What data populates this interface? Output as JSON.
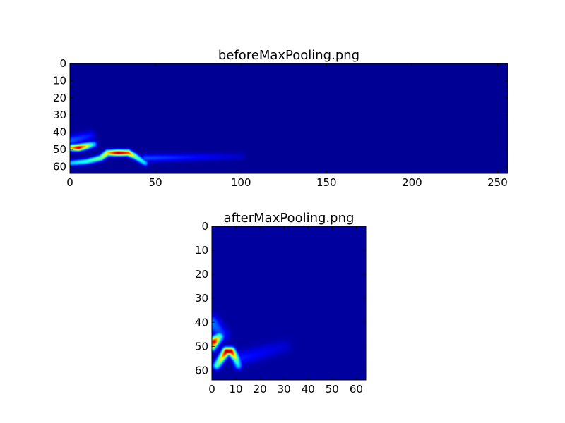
{
  "chart_data": [
    {
      "type": "heatmap",
      "title": "beforeMaxPooling.png",
      "colormap": "jet",
      "shape": [
        64,
        256
      ],
      "xlim": [
        0,
        256
      ],
      "ylim": [
        64,
        0
      ],
      "x_ticks": [
        0,
        50,
        100,
        150,
        200,
        250
      ],
      "y_ticks": [
        0,
        10,
        20,
        30,
        40,
        50,
        60
      ],
      "grid": false,
      "background_value": 0.02,
      "features": [
        {
          "points": [
            [
              0,
              49,
              0.6
            ],
            [
              5,
              49,
              0.92
            ],
            [
              10,
              48,
              0.6
            ],
            [
              14,
              47,
              0.3
            ]
          ],
          "spread": 1.3
        },
        {
          "points": [
            [
              0,
              58,
              0.3
            ],
            [
              10,
              57,
              0.4
            ],
            [
              18,
              55,
              0.5
            ],
            [
              22,
              52,
              0.65
            ],
            [
              28,
              52,
              0.95
            ],
            [
              34,
              52,
              0.8
            ],
            [
              38,
              54,
              0.5
            ],
            [
              44,
              58,
              0.3
            ]
          ],
          "spread": 1.2
        },
        {
          "points": [
            [
              0,
              45,
              0.2
            ],
            [
              12,
              42,
              0.12
            ]
          ],
          "spread": 2
        },
        {
          "points": [
            [
              44,
              55,
              0.18
            ],
            [
              100,
              54,
              0.05
            ]
          ],
          "spread": 1.5
        }
      ]
    },
    {
      "type": "heatmap",
      "title": "afterMaxPooling.png",
      "colormap": "jet",
      "shape": [
        64,
        64
      ],
      "xlim": [
        0,
        64
      ],
      "ylim": [
        64,
        0
      ],
      "x_ticks": [
        0,
        10,
        20,
        30,
        40,
        50,
        60
      ],
      "y_ticks": [
        0,
        10,
        20,
        30,
        40,
        50,
        60
      ],
      "grid": false,
      "background_value": 0.03,
      "features": [
        {
          "points": [
            [
              0,
              50,
              0.6
            ],
            [
              1,
              48,
              0.9
            ],
            [
              3,
              46,
              0.45
            ]
          ],
          "spread": 1.3
        },
        {
          "points": [
            [
              2,
              58,
              0.4
            ],
            [
              4,
              55,
              0.6
            ],
            [
              6,
              52,
              0.95
            ],
            [
              8,
              52,
              0.9
            ],
            [
              10,
              55,
              0.5
            ],
            [
              11,
              58,
              0.3
            ]
          ],
          "spread": 1.1
        },
        {
          "points": [
            [
              0,
              40,
              0.22
            ],
            [
              4,
              45,
              0.15
            ]
          ],
          "spread": 2
        },
        {
          "points": [
            [
              12,
              55,
              0.12
            ],
            [
              30,
              50,
              0.05
            ]
          ],
          "spread": 2
        }
      ]
    }
  ]
}
